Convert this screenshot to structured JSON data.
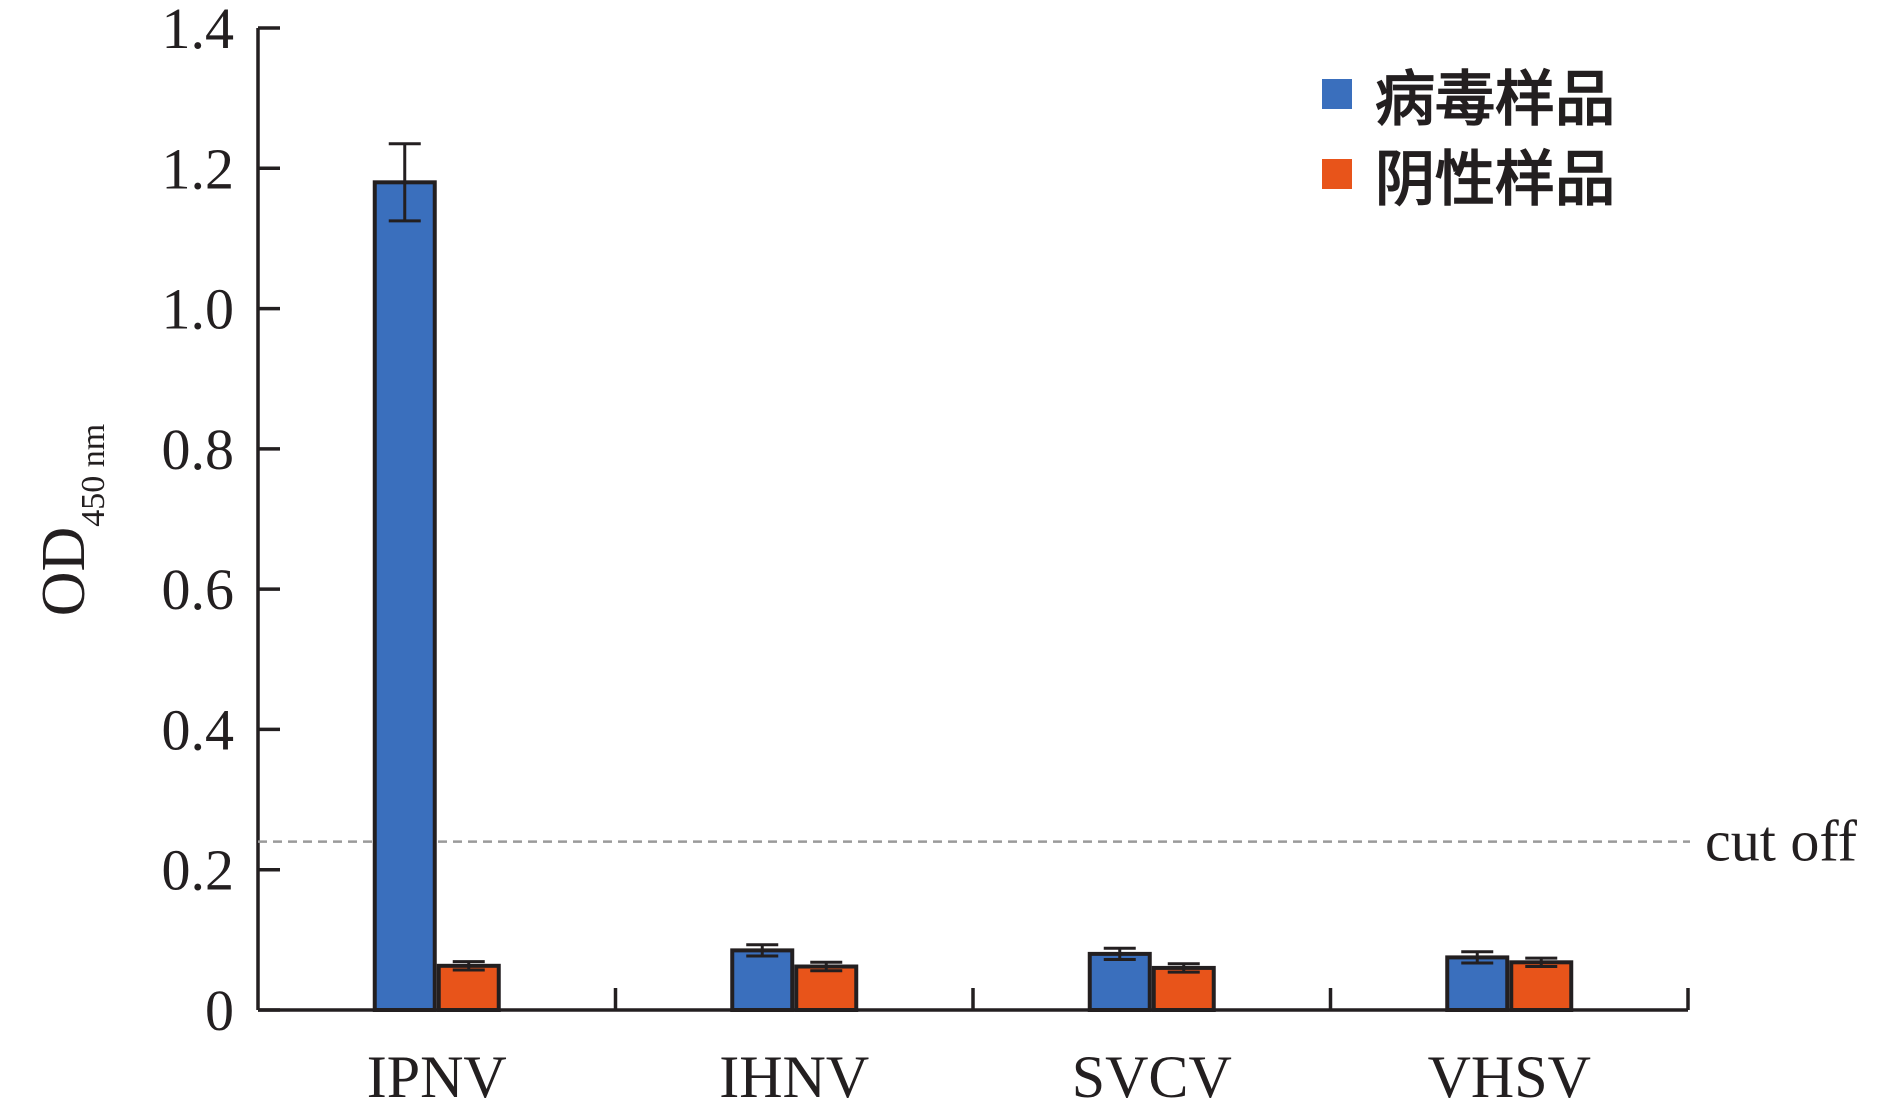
{
  "chart_data": {
    "type": "bar",
    "categories": [
      "IPNV",
      "IHNV",
      "SVCV",
      "VHSV"
    ],
    "series": [
      {
        "name": "病毒样品",
        "values": [
          1.18,
          0.085,
          0.08,
          0.075
        ],
        "errors": [
          0.055,
          0.008,
          0.008,
          0.008
        ],
        "color": "#3a6fbd"
      },
      {
        "name": "阴性样品",
        "values": [
          0.063,
          0.062,
          0.06,
          0.068
        ],
        "errors": [
          0.006,
          0.006,
          0.006,
          0.006
        ],
        "color": "#e8541a"
      }
    ],
    "ylabel_main": "OD",
    "ylabel_sub": "450 nm",
    "ylim": [
      0,
      1.4
    ],
    "yticks": [
      "0",
      "0.2",
      "0.4",
      "0.6",
      "0.8",
      "1.0",
      "1.2",
      "1.4"
    ],
    "cutoff": {
      "value": 0.24,
      "label": "cut off"
    },
    "legend_position": "top-right",
    "grid": false
  }
}
